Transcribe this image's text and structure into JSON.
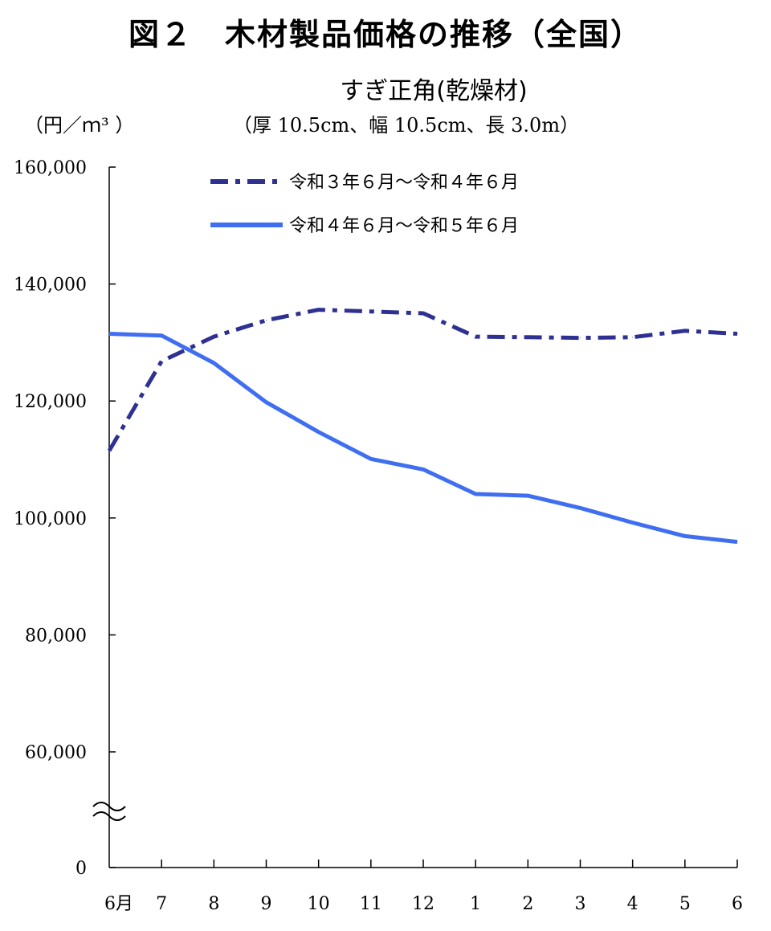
{
  "title": "図２　木材製品価格の推移（全国）",
  "subtitle": "すぎ正角(乾燥材)",
  "unit_label": "（円／ｍ³ ）",
  "spec_label": "（厚 10.5cm、幅 10.5cm、長 3.0m）",
  "colors": {
    "series1": "#2e3192",
    "series2": "#3f6ff0",
    "axis": "#000000"
  },
  "chart_data": {
    "type": "line",
    "title": "すぎ正角(乾燥材)",
    "ylabel": "（円／ｍ³ ）",
    "ylim": [
      0,
      160000
    ],
    "y_axis_break": "between 0 and 60,000",
    "yticks": [
      0,
      60000,
      80000,
      100000,
      120000,
      140000,
      160000
    ],
    "ytick_labels": [
      "0",
      "60,000",
      "80,000",
      "100,000",
      "120,000",
      "140,000",
      "160,000"
    ],
    "categories": [
      "6月",
      "7",
      "8",
      "9",
      "10",
      "11",
      "12",
      "1",
      "2",
      "3",
      "4",
      "5",
      "6"
    ],
    "legend_position": "top",
    "grid": false,
    "series": [
      {
        "name": "令和３年６月～令和４年６月",
        "style": "dash-dot",
        "values": [
          111500,
          126800,
          131000,
          133800,
          135600,
          135300,
          135000,
          131000,
          130900,
          130800,
          130900,
          132000,
          131500
        ]
      },
      {
        "name": "令和４年６月～令和５年６月",
        "style": "solid",
        "values": [
          131500,
          131200,
          126500,
          119800,
          114700,
          110100,
          108300,
          104100,
          103800,
          101700,
          99200,
          96900,
          95900
        ]
      }
    ]
  }
}
